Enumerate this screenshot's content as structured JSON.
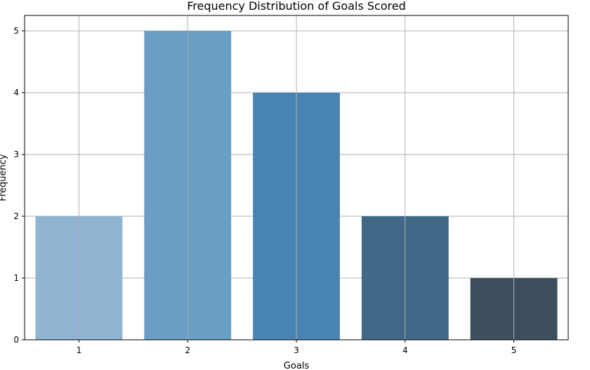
{
  "chart_data": {
    "type": "bar",
    "title": "Frequency Distribution of Goals Scored",
    "xlabel": "Goals",
    "ylabel": "Frequency",
    "categories": [
      "1",
      "2",
      "3",
      "4",
      "5"
    ],
    "values": [
      2,
      5,
      4,
      2,
      1
    ],
    "ylim": [
      0,
      5.25
    ],
    "yticks": [
      "0",
      "1",
      "2",
      "3",
      "4",
      "5"
    ],
    "grid": true,
    "bar_colors": [
      "#8fb3d0",
      "#6a9ec3",
      "#4884b3",
      "#416987",
      "#3c4e5e"
    ]
  }
}
